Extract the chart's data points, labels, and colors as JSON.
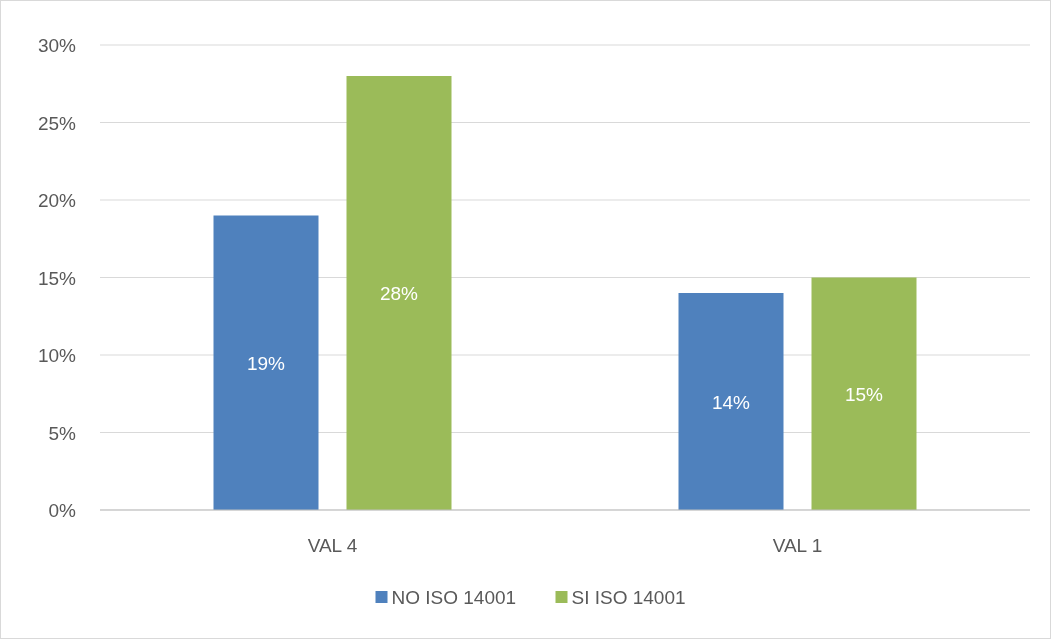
{
  "chart_data": {
    "type": "bar",
    "categories": [
      "VAL 4",
      "VAL 1"
    ],
    "series": [
      {
        "name": "NO ISO 14001",
        "color": "#4f81bd",
        "values": [
          19,
          14
        ],
        "value_labels": [
          "19%",
          "14%"
        ]
      },
      {
        "name": "SI ISO 14001",
        "color": "#9bbb59",
        "values": [
          28,
          15
        ],
        "value_labels": [
          "28%",
          "15%"
        ]
      }
    ],
    "ylim": [
      0,
      30
    ],
    "yticks": [
      {
        "value": 0,
        "label": "0%"
      },
      {
        "value": 5,
        "label": "5%"
      },
      {
        "value": 10,
        "label": "10%"
      },
      {
        "value": 15,
        "label": "15%"
      },
      {
        "value": 20,
        "label": "20%"
      },
      {
        "value": 25,
        "label": "25%"
      },
      {
        "value": 30,
        "label": "30%"
      }
    ],
    "grid": "y",
    "legend": "bottom"
  }
}
